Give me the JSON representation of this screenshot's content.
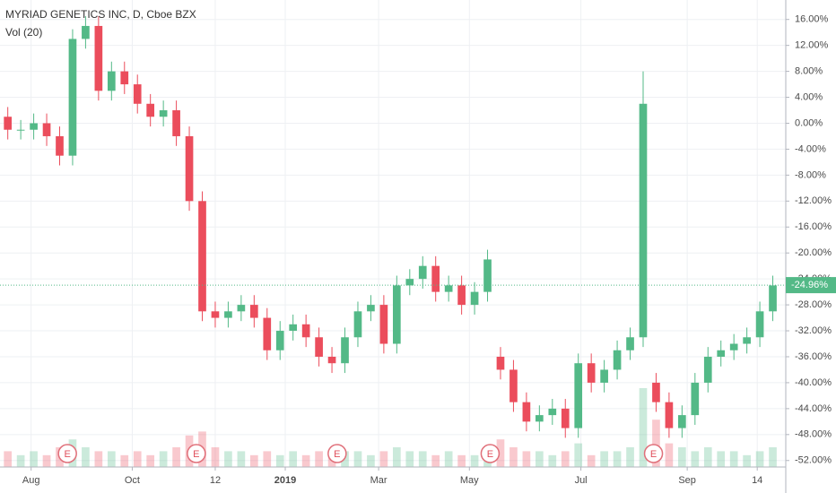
{
  "chart_data": {
    "type": "candlestick",
    "title": "MYRIAD GENETICS INC, D, Cboe BZX",
    "subtitle": "Vol (20)",
    "up_color": "#53b987",
    "down_color": "#eb4d5c",
    "xlim": [
      -3,
      300
    ],
    "ylim": [
      -53,
      19
    ],
    "xticks": [
      {
        "value": 9,
        "label": "Aug"
      },
      {
        "value": 48,
        "label": "Oct"
      },
      {
        "value": 80,
        "label": "12"
      },
      {
        "value": 107,
        "label": "2019"
      },
      {
        "value": 143,
        "label": "Mar"
      },
      {
        "value": 178,
        "label": "May"
      },
      {
        "value": 221,
        "label": "Jul"
      },
      {
        "value": 262,
        "label": "Sep"
      },
      {
        "value": 289,
        "label": "14"
      }
    ],
    "yticks": [
      {
        "value": 16,
        "label": "16.00%"
      },
      {
        "value": 12,
        "label": "12.00%"
      },
      {
        "value": 8,
        "label": "8.00%"
      },
      {
        "value": 4,
        "label": "4.00%"
      },
      {
        "value": 0,
        "label": "0.00%"
      },
      {
        "value": -4,
        "label": "-4.00%"
      },
      {
        "value": -8,
        "label": "-8.00%"
      },
      {
        "value": -12,
        "label": "-12.00%"
      },
      {
        "value": -16,
        "label": "-16.00%"
      },
      {
        "value": -20,
        "label": "-20.00%"
      },
      {
        "value": -24,
        "label": "-24.00%"
      },
      {
        "value": -28,
        "label": "-28.00%"
      },
      {
        "value": -32,
        "label": "-32.00%"
      },
      {
        "value": -36,
        "label": "-36.00%"
      },
      {
        "value": -40,
        "label": "-40.00%"
      },
      {
        "value": -44,
        "label": "-44.00%"
      },
      {
        "value": -48,
        "label": "-48.00%"
      },
      {
        "value": -52,
        "label": "-52.00%"
      }
    ],
    "grid": true,
    "x": [
      0,
      5,
      10,
      15,
      20,
      25,
      30,
      35,
      40,
      45,
      50,
      55,
      60,
      65,
      70,
      75,
      80,
      85,
      90,
      95,
      100,
      105,
      110,
      115,
      120,
      125,
      130,
      135,
      140,
      145,
      150,
      155,
      160,
      165,
      170,
      175,
      180,
      185,
      190,
      195,
      200,
      205,
      210,
      215,
      220,
      225,
      230,
      235,
      240,
      245,
      250,
      255,
      260,
      265,
      270,
      275,
      280,
      285,
      290,
      295
    ],
    "open": [
      1,
      -1,
      -1,
      0,
      -2,
      -5,
      13,
      15,
      5,
      8,
      6,
      3,
      1,
      2,
      -2,
      -12,
      -29,
      -30,
      -29,
      -28,
      -30,
      -35,
      -32,
      -31,
      -33,
      -36,
      -37,
      -33,
      -29,
      -28,
      -34,
      -25,
      -24,
      -22,
      -26,
      -25,
      -28,
      -26,
      -36,
      -38,
      -43,
      -46,
      -45,
      -44,
      -47,
      -37,
      -40,
      -38,
      -35,
      -33,
      -40,
      -43,
      -47,
      -45,
      -40,
      -36,
      -35,
      -34,
      -33,
      -29
    ],
    "high": [
      2.5,
      0.5,
      1.5,
      1.5,
      -0.5,
      14.5,
      16.5,
      16.5,
      9.5,
      9.5,
      7.5,
      4.5,
      3.5,
      3.5,
      -0.5,
      -10.5,
      -27.5,
      -27.5,
      -26.5,
      -26.5,
      -28.5,
      -30.5,
      -29.5,
      -29.5,
      -31.5,
      -34.5,
      -31.5,
      -27.5,
      -26.5,
      -26.5,
      -23.5,
      -22.5,
      -20.5,
      -20.5,
      -23.5,
      -23.5,
      -24.5,
      -19.5,
      -34.5,
      -36.5,
      -41.5,
      -43.5,
      -42.5,
      -42.5,
      -35.5,
      -35.5,
      -36.5,
      -33.5,
      -31.5,
      8,
      -38.5,
      -41.5,
      -43.5,
      -38.5,
      -34.5,
      -33.5,
      -32.5,
      -31.5,
      -27.5,
      -23.5
    ],
    "low": [
      -2.5,
      -2.5,
      -2.5,
      -3.5,
      -6.5,
      -6.5,
      11.5,
      3.5,
      3.5,
      4.5,
      1.5,
      -0.5,
      -0.5,
      -3.5,
      -13.5,
      -30.5,
      -31.5,
      -31.5,
      -30.5,
      -31.5,
      -36.5,
      -36.5,
      -33.5,
      -34.5,
      -37.5,
      -38.5,
      -38.5,
      -34.5,
      -30.5,
      -35.5,
      -35.5,
      -26.5,
      -25.5,
      -27.5,
      -27.5,
      -29.5,
      -29.5,
      -27.5,
      -39.5,
      -44.5,
      -47.5,
      -47.5,
      -46.5,
      -48.5,
      -48.5,
      -41.5,
      -41.5,
      -39.5,
      -36.5,
      -34.5,
      -44.5,
      -48.5,
      -48.5,
      -46.5,
      -41.5,
      -37.5,
      -36.5,
      -35.5,
      -34.5,
      -30.5
    ],
    "close": [
      -1,
      -1,
      0,
      -2,
      -5,
      13,
      15,
      5,
      8,
      6,
      3,
      1,
      2,
      -2,
      -12,
      -29,
      -30,
      -29,
      -28,
      -30,
      -35,
      -32,
      -31,
      -33,
      -36,
      -37,
      -33,
      -29,
      -28,
      -34,
      -25,
      -24,
      -22,
      -26,
      -25,
      -28,
      -26,
      -21,
      -38,
      -43,
      -46,
      -45,
      -44,
      -47,
      -37,
      -40,
      -38,
      -35,
      -33,
      3,
      -43,
      -47,
      -45,
      -40,
      -36,
      -35,
      -34,
      -33,
      -29,
      -25
    ],
    "volume": [
      4,
      3,
      4,
      3,
      5,
      7,
      5,
      4,
      4,
      3,
      4,
      3,
      4,
      5,
      8,
      9,
      5,
      4,
      4,
      3,
      4,
      3,
      4,
      3,
      4,
      3,
      4,
      4,
      3,
      4,
      5,
      4,
      4,
      3,
      4,
      3,
      3,
      5,
      7,
      5,
      4,
      4,
      3,
      4,
      6,
      3,
      4,
      4,
      5,
      20,
      12,
      6,
      5,
      4,
      5,
      4,
      4,
      3,
      4,
      5
    ],
    "last_price": {
      "value": -24.96,
      "label": "-24.96%"
    },
    "earnings": {
      "x": [
        23,
        72.7,
        127,
        186,
        249
      ],
      "label": "E"
    }
  }
}
